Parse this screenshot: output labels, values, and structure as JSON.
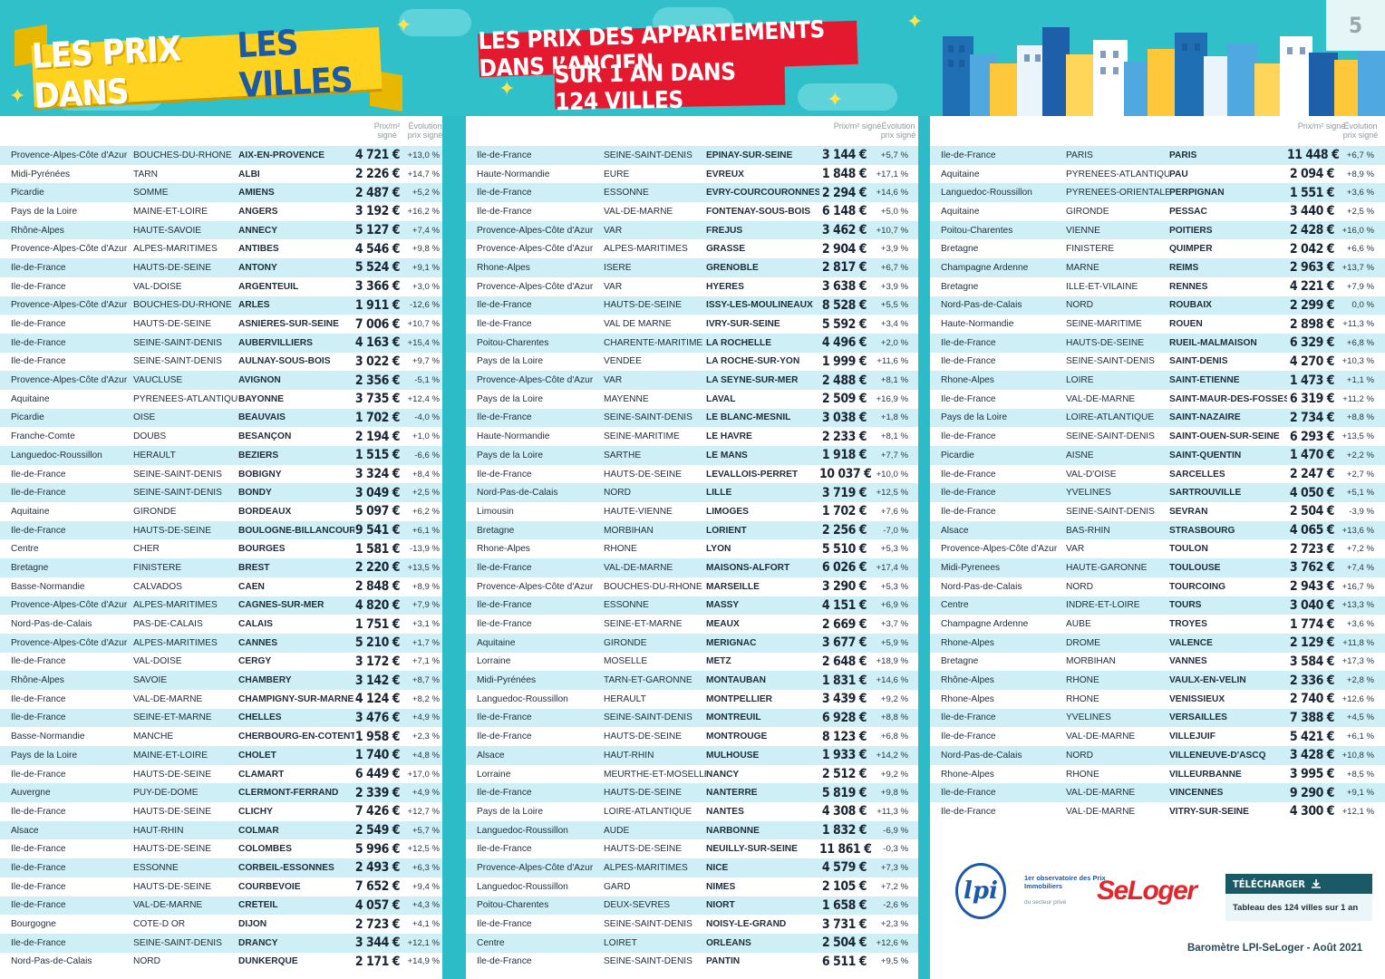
{
  "page": {
    "number": "5",
    "title_part1": "LES PRIX DANS",
    "title_part2": "LES VILLES",
    "subtitle_line1": "LES PRIX DES APPARTEMENTS DANS L’ANCIEN",
    "subtitle_line2": "SUR 1 AN DANS 124 VILLES"
  },
  "colors": {
    "teal": "#2fc0ca",
    "stripe": "#cdeff5",
    "yellow": "#ffd21f",
    "red": "#e4192f",
    "navy": "#1b5aa5"
  },
  "headers": {
    "price": "Prix/m² signé",
    "evolution": "Évolution prix signé"
  },
  "columns": [
    [
      [
        "Provence-Alpes-Côte d'Azur",
        "BOUCHES-DU-RHONE",
        "AIX-EN-PROVENCE",
        "4 721 €",
        "+13,0 %"
      ],
      [
        "Midi-Pyrénées",
        "TARN",
        "ALBI",
        "2 226 €",
        "+14,7 %"
      ],
      [
        "Picardie",
        "SOMME",
        "AMIENS",
        "2 487 €",
        "+5,2 %"
      ],
      [
        "Pays de la Loire",
        "MAINE-ET-LOIRE",
        "ANGERS",
        "3 192 €",
        "+16,2 %"
      ],
      [
        "Rhône-Alpes",
        "HAUTE-SAVOIE",
        "ANNECY",
        "5 127 €",
        "+7,4 %"
      ],
      [
        "Provence-Alpes-Côte d'Azur",
        "ALPES-MARITIMES",
        "ANTIBES",
        "4 546 €",
        "+9,8 %"
      ],
      [
        "Ile-de-France",
        "HAUTS-DE-SEINE",
        "ANTONY",
        "5 524 €",
        "+9,1 %"
      ],
      [
        "Ile-de-France",
        "VAL-DOISE",
        "ARGENTEUIL",
        "3 366 €",
        "+3,0 %"
      ],
      [
        "Provence-Alpes-Côte d'Azur",
        "BOUCHES-DU-RHÔNE",
        "ARLES",
        "1 911 €",
        "-12,6 %"
      ],
      [
        "Ile-de-France",
        "HAUTS-DE-SEINE",
        "ASNIÈRES-SUR-SEINE",
        "7 006 €",
        "+10,7 %"
      ],
      [
        "Ile-de-France",
        "SEINE-SAINT-DENIS",
        "AUBERVILLIERS",
        "4 163 €",
        "+15,4 %"
      ],
      [
        "Ile-de-France",
        "SEINE-SAINT-DENIS",
        "AULNAY-SOUS-BOIS",
        "3 022 €",
        "+9,7 %"
      ],
      [
        "Provence-Alpes-Côte d'Azur",
        "VAUCLUSE",
        "AVIGNON",
        "2 356 €",
        "-5,1 %"
      ],
      [
        "Aquitaine",
        "PYRÉNÉES-ATLANTIQUES",
        "BAYONNE",
        "3 735 €",
        "+12,4 %"
      ],
      [
        "Picardie",
        "OISE",
        "BEAUVAIS",
        "1 702 €",
        "-4,0 %"
      ],
      [
        "Franche-Comte",
        "DOUBS",
        "BESANÇON",
        "2 194 €",
        "+1,0 %"
      ],
      [
        "Languedoc-Roussillon",
        "HERAULT",
        "BÉZIERS",
        "1 515 €",
        "-6,6 %"
      ],
      [
        "Île-de-France",
        "SEINE-SAINT-DENIS",
        "BOBIGNY",
        "3 324 €",
        "+8,4 %"
      ],
      [
        "Île-de-France",
        "SEINE-SAINT-DENIS",
        "BONDY",
        "3 049 €",
        "+2,5 %"
      ],
      [
        "Aquitaine",
        "GIRONDE",
        "BORDEAUX",
        "5 097 €",
        "+6,2 %"
      ],
      [
        "Ile-de-France",
        "HAUTS-DE-SEINE",
        "BOULOGNE-BILLANCOURT",
        "9 541 €",
        "+6,1 %"
      ],
      [
        "Centre",
        "CHER",
        "BOURGES",
        "1 581 €",
        "-13,9 %"
      ],
      [
        "Bretagne",
        "FINISTERE",
        "BREST",
        "2 220 €",
        "+13,5 %"
      ],
      [
        "Basse-Normandie",
        "CALVADOS",
        "CAEN",
        "2 848 €",
        "+8,9 %"
      ],
      [
        "Provence-Alpes-Côte d'Azur",
        "ALPES-MARITIMES",
        "CAGNES-SUR-MER",
        "4 820 €",
        "+7,9 %"
      ],
      [
        "Nord-Pas-de-Calais",
        "PAS-DE-CALAIS",
        "CALAIS",
        "1 751 €",
        "+3,1 %"
      ],
      [
        "Provence-Alpes-Côte d'Azur",
        "ALPES-MARITIMES",
        "CANNES",
        "5 210 €",
        "+1,7 %"
      ],
      [
        "Ile-de-France",
        "VAL-DOISE",
        "CERGY",
        "3 172 €",
        "+7,1 %"
      ],
      [
        "Rhône-Alpes",
        "SAVOIE",
        "CHAMBERY",
        "3 142 €",
        "+8,7 %"
      ],
      [
        "Ile-de-France",
        "VAL-DE-MARNE",
        "CHAMPIGNY-SUR-MARNE",
        "4 124 €",
        "+8,2 %"
      ],
      [
        "Île-de-France",
        "SEINE-ET-MARNE",
        "CHELLES",
        "3 476 €",
        "+4,9 %"
      ],
      [
        "Basse-Normandie",
        "MANCHE",
        "CHERBOURG-EN-COTENTIN",
        "1 958 €",
        "+2,3 %"
      ],
      [
        "Pays de la Loire",
        "MAINE-ET-LOIRE",
        "CHOLET",
        "1 740 €",
        "+4,8 %"
      ],
      [
        "Île-de-France",
        "HAUTS-DE-SEINE",
        "CLAMART",
        "6 449 €",
        "+17,0 %"
      ],
      [
        "Auvergne",
        "PUY-DE-DOME",
        "CLERMONT-FERRAND",
        "2 339 €",
        "+4,9 %"
      ],
      [
        "Île-de-France",
        "HAUTS-DE-SEINE",
        "CLICHY",
        "7 426 €",
        "+12,7 %"
      ],
      [
        "Alsace",
        "HAUT-RHIN",
        "COLMAR",
        "2 549 €",
        "+5,7 %"
      ],
      [
        "Ile-de-France",
        "HAUTS-DE-SEINE",
        "COLOMBES",
        "5 996 €",
        "+12,5 %"
      ],
      [
        "Île-de-France",
        "ESSONNE",
        "CORBEIL-ESSONNES",
        "2 493 €",
        "+6,3 %"
      ],
      [
        "Ile-de-France",
        "HAUTS-DE-SEINE",
        "COURBEVOIE",
        "7 652 €",
        "+9,4 %"
      ],
      [
        "Ile-de-France",
        "VAL-DE-MARNE",
        "CRÉTEIL",
        "4 057 €",
        "+4,3 %"
      ],
      [
        "Bourgogne",
        "COTE-D OR",
        "DIJON",
        "2 723 €",
        "+4,1 %"
      ],
      [
        "Ile-de-France",
        "SEINE-SAINT-DENIS",
        "DRANCY",
        "3 344 €",
        "+12,1 %"
      ],
      [
        "Nord-Pas-de-Calais",
        "NORD",
        "DUNKERQUE",
        "2 171 €",
        "+14,9 %"
      ]
    ],
    [
      [
        "Île-de-France",
        "SEINE-SAINT-DENIS",
        "EPINAY-SUR-SEINE",
        "3 144 €",
        "+5,7 %"
      ],
      [
        "Haute-Normandie",
        "EURE",
        "EVREUX",
        "1 848 €",
        "+17,1 %"
      ],
      [
        "Île-de-France",
        "ESSONNE",
        "EVRY-COURCOURONNES",
        "2 294 €",
        "+14,6 %"
      ],
      [
        "Île-de-France",
        "VAL-DE-MARNE",
        "FONTENAY-SOUS-BOIS",
        "6 148 €",
        "+5,0 %"
      ],
      [
        "Provence-Alpes-Côte d'Azur",
        "VAR",
        "FREJUS",
        "3 462 €",
        "+10,7 %"
      ],
      [
        "Provence-Alpes-Côte d'Azur",
        "ALPES-MARITIMES",
        "GRASSE",
        "2 904 €",
        "+3,9 %"
      ],
      [
        "Rhone-Alpes",
        "ISERE",
        "GRENOBLE",
        "2 817 €",
        "+6,7 %"
      ],
      [
        "Provence-Alpes-Côte d'Azur",
        "VAR",
        "HYERES",
        "3 638 €",
        "+3,9 %"
      ],
      [
        "Ile-de-France",
        "HAUTS-DE-SEINE",
        "ISSY-LES-MOULINEAUX",
        "8 528 €",
        "+5,5 %"
      ],
      [
        "Île-de-France",
        "VAL DE MARNE",
        "IVRY-SUR-SEINE",
        "5 592 €",
        "+3,4 %"
      ],
      [
        "Poitou-Charentes",
        "CHARENTE-MARITIME",
        "LA ROCHELLE",
        "4 496 €",
        "+2,0 %"
      ],
      [
        "Pays de la Loire",
        "VENDÉE",
        "LA ROCHE-SUR-YON",
        "1 999 €",
        "+11,6 %"
      ],
      [
        "Provence-Alpes-Côte d'Azur",
        "VAR",
        "LA SEYNE-SUR-MER",
        "2 488 €",
        "+8,1 %"
      ],
      [
        "Pays de la Loire",
        "MAYENNE",
        "LAVAL",
        "2 509 €",
        "+16,9 %"
      ],
      [
        "Île-de-France",
        "SEINE-SAINT-DENIS",
        "LE BLANC-MESNIL",
        "3 038 €",
        "+1,8 %"
      ],
      [
        "Haute-Normandie",
        "SEINE-MARITIME",
        "LE HAVRE",
        "2 233 €",
        "+8,1 %"
      ],
      [
        "Pays de la Loire",
        "SARTHE",
        "LE MANS",
        "1 918 €",
        "+7,7 %"
      ],
      [
        "Ile-de-France",
        "HAUTS-DE-SEINE",
        "LEVALLOIS-PERRET",
        "10 037 €",
        "+10,0 %"
      ],
      [
        "Nord-Pas-de-Calais",
        "NORD",
        "LILLE",
        "3 719 €",
        "+12,5 %"
      ],
      [
        "Limousin",
        "HAUTE-VIENNE",
        "LIMOGES",
        "1 702 €",
        "+7,6 %"
      ],
      [
        "Bretagne",
        "MORBIHAN",
        "LORIENT",
        "2 256 €",
        "-7,0 %"
      ],
      [
        "Rhone-Alpes",
        "RHONE",
        "LYON",
        "5 510 €",
        "+5,3 %"
      ],
      [
        "Île-de-France",
        "VAL-DE-MARNE",
        "MAISONS-ALFORT",
        "6 026 €",
        "+17,4 %"
      ],
      [
        "Provence-Alpes-Côte d'Azur",
        "BOUCHES-DU-RHONE",
        "MARSEILLE",
        "3 290 €",
        "+5,3 %"
      ],
      [
        "Île-de-France",
        "ESSONNE",
        "MASSY",
        "4 151 €",
        "+6,9 %"
      ],
      [
        "Île-de-France",
        "SEINE-ET-MARNE",
        "MEAUX",
        "2 669 €",
        "+3,7 %"
      ],
      [
        "Aquitaine",
        "GIRONDE",
        "MÉRIGNAC",
        "3 677 €",
        "+5,9 %"
      ],
      [
        "Lorraine",
        "MOSELLE",
        "METZ",
        "2 648 €",
        "+18,9 %"
      ],
      [
        "Midi-Pyrénées",
        "TARN-ET-GARONNE",
        "MONTAUBAN",
        "1 831 €",
        "+14,6 %"
      ],
      [
        "Languedoc-Roussillon",
        "HERAULT",
        "MONTPELLIER",
        "3 439 €",
        "+9,2 %"
      ],
      [
        "Ile-de-France",
        "SEINE-SAINT-DENIS",
        "MONTREUIL",
        "6 928 €",
        "+8,8 %"
      ],
      [
        "Île-de-France",
        "HAUTS-DE-SEINE",
        "MONTROUGE",
        "8 123 €",
        "+6,8 %"
      ],
      [
        "Alsace",
        "HAUT-RHIN",
        "MULHOUSE",
        "1 933 €",
        "+14,2 %"
      ],
      [
        "Lorraine",
        "MEURTHE-ET-MOSELLE",
        "NANCY",
        "2 512 €",
        "+9,2 %"
      ],
      [
        "Ile-de-France",
        "HAUTS-DE-SEINE",
        "NANTERRE",
        "5 819 €",
        "+9,8 %"
      ],
      [
        "Pays de la Loire",
        "LOIRE-ATLANTIQUE",
        "NANTES",
        "4 308 €",
        "+11,3 %"
      ],
      [
        "Languedoc-Roussillon",
        "AUDE",
        "NARBONNE",
        "1 832 €",
        "-6,9 %"
      ],
      [
        "Ile-de-France",
        "HAUTS-DE-SEINE",
        "NEUILLY-SUR-SEINE",
        "11 861 €",
        "-0,3 %"
      ],
      [
        "Provence-Alpes-Côte d'Azur",
        "ALPES-MARITIMES",
        "NICE",
        "4 579 €",
        "+7,3 %"
      ],
      [
        "Languedoc-Roussillon",
        "GARD",
        "NÎMES",
        "2 105 €",
        "+7,2 %"
      ],
      [
        "Poitou-Charentes",
        "DEUX-SÈVRES",
        "NIORT",
        "1 658 €",
        "-2,6 %"
      ],
      [
        "Ile-de-France",
        "SEINE-SAINT-DENIS",
        "NOISY-LE-GRAND",
        "3 731 €",
        "+2,3 %"
      ],
      [
        "Centre",
        "LOIRET",
        "ORLÉANS",
        "2 504 €",
        "+12,6 %"
      ],
      [
        "Île-de-France",
        "SEINE-SAINT-DENIS",
        "PANTIN",
        "6 511 €",
        "+9,5 %"
      ]
    ],
    [
      [
        "Ile-de-France",
        "PARIS",
        "PARIS",
        "11 448 €",
        "+6,7 %"
      ],
      [
        "Aquitaine",
        "PYRENEES-ATLANTIQUES",
        "PAU",
        "2 094 €",
        "+8,9 %"
      ],
      [
        "Languedoc-Roussillon",
        "PYRENEES-ORIENTALES",
        "PERPIGNAN",
        "1 551 €",
        "+3,6 %"
      ],
      [
        "Aquitaine",
        "GIRONDE",
        "PESSAC",
        "3 440 €",
        "+2,5 %"
      ],
      [
        "Poitou-Charentes",
        "VIENNE",
        "POITIERS",
        "2 428 €",
        "+16,0 %"
      ],
      [
        "Bretagne",
        "FINISTERE",
        "QUIMPER",
        "2 042 €",
        "+6,6 %"
      ],
      [
        "Champagne Ardenne",
        "MARNE",
        "REIMS",
        "2 963 €",
        "+13,7 %"
      ],
      [
        "Bretagne",
        "ILLE-ET-VILAINE",
        "RENNES",
        "4 221 €",
        "+7,9 %"
      ],
      [
        "Nord-Pas-de-Calais",
        "NORD",
        "ROUBAIX",
        "2 299 €",
        "0,0 %"
      ],
      [
        "Haute-Normandie",
        "SEINE-MARITIME",
        "ROUEN",
        "2 898 €",
        "+11,3 %"
      ],
      [
        "Ile-de-France",
        "HAUTS-DE-SEINE",
        "RUEIL-MALMAISON",
        "6 329 €",
        "+6,8 %"
      ],
      [
        "Ile-de-France",
        "SEINE-SAINT-DENIS",
        "SAINT-DENIS",
        "4 270 €",
        "+10,3 %"
      ],
      [
        "Rhone-Alpes",
        "LOIRE",
        "SAINT-ÉTIENNE",
        "1 473 €",
        "+1,1 %"
      ],
      [
        "Ile-de-France",
        "VAL-DE-MARNE",
        "SAINT-MAUR-DES-FOSSÉS",
        "6 319 €",
        "+11,2 %"
      ],
      [
        "Pays de la Loire",
        "LOIRE-ATLANTIQUE",
        "SAINT-NAZAIRE",
        "2 734 €",
        "+8,8 %"
      ],
      [
        "Île-de-France",
        "SEINE-SAINT-DENIS",
        "SAINT-OUEN-SUR-SEINE",
        "6 293 €",
        "+13,5 %"
      ],
      [
        "Picardie",
        "AISNE",
        "SAINT-QUENTIN",
        "1 470 €",
        "+2,2 %"
      ],
      [
        "Île-de-France",
        "VAL-D'OISE",
        "SARCELLES",
        "2 247 €",
        "+2,7 %"
      ],
      [
        "Île-de-France",
        "YVELINES",
        "SARTROUVILLE",
        "4 050 €",
        "+5,1 %"
      ],
      [
        "Île-de-France",
        "SEINE-SAINT-DENIS",
        "SEVRAN",
        "2 504 €",
        "-3,9 %"
      ],
      [
        "Alsace",
        "BAS-RHIN",
        "STRASBOURG",
        "4 065 €",
        "+13,6 %"
      ],
      [
        "Provence-Alpes-Côte d'Azur",
        "VAR",
        "TOULON",
        "2 723 €",
        "+7,2 %"
      ],
      [
        "Midi-Pyrenees",
        "HAUTE-GARONNE",
        "TOULOUSE",
        "3 762 €",
        "+7,4 %"
      ],
      [
        "Nord-Pas-de-Calais",
        "NORD",
        "TOURCOING",
        "2 943 €",
        "+16,7 %"
      ],
      [
        "Centre",
        "INDRE-ET-LOIRE",
        "TOURS",
        "3 040 €",
        "+13,3 %"
      ],
      [
        "Champagne Ardenne",
        "AUBE",
        "TROYES",
        "1 774 €",
        "+3,6 %"
      ],
      [
        "Rhone-Alpes",
        "DROME",
        "VALENCE",
        "2 129 €",
        "+11,8 %"
      ],
      [
        "Bretagne",
        "MORBIHAN",
        "VANNES",
        "3 584 €",
        "+17,3 %"
      ],
      [
        "Rhône-Alpes",
        "RHÔNE",
        "VAULX-EN-VELIN",
        "2 336 €",
        "+2,8 %"
      ],
      [
        "Rhone-Alpes",
        "RHONE",
        "VÉNISSIEUX",
        "2 740 €",
        "+12,6 %"
      ],
      [
        "Île-de-France",
        "YVELINES",
        "VERSAILLES",
        "7 388 €",
        "+4,5 %"
      ],
      [
        "Île-de-France",
        "VAL-DE-MARNE",
        "VILLEJUIF",
        "5 421 €",
        "+6,1 %"
      ],
      [
        "Nord-Pas-de-Calais",
        "NORD",
        "VILLENEUVE-D'ASCQ",
        "3 428 €",
        "+10,8 %"
      ],
      [
        "Rhone-Alpes",
        "RHONE",
        "VILLEURBANNE",
        "3 995 €",
        "+8,5 %"
      ],
      [
        "Île-de-France",
        "VAL-DE-MARNE",
        "VINCENNES",
        "9 290 €",
        "+9,1 %"
      ],
      [
        "Ile-de-France",
        "VAL-DE-MARNE",
        "VITRY-SUR-SEINE",
        "4 300 €",
        "+12,1 %"
      ]
    ]
  ],
  "logos": {
    "lpi_mark": "lpi",
    "lpi_text": "1er observatoire des Prix Immobiliers",
    "lpi_sub": "du secteur privé",
    "seloger": "SeLoger",
    "download_label": "TÉLÉCHARGER",
    "download_desc": "Tableau des 124 villes sur 1 an"
  },
  "footer": "Baromètre LPI-SeLoger - Août 2021"
}
